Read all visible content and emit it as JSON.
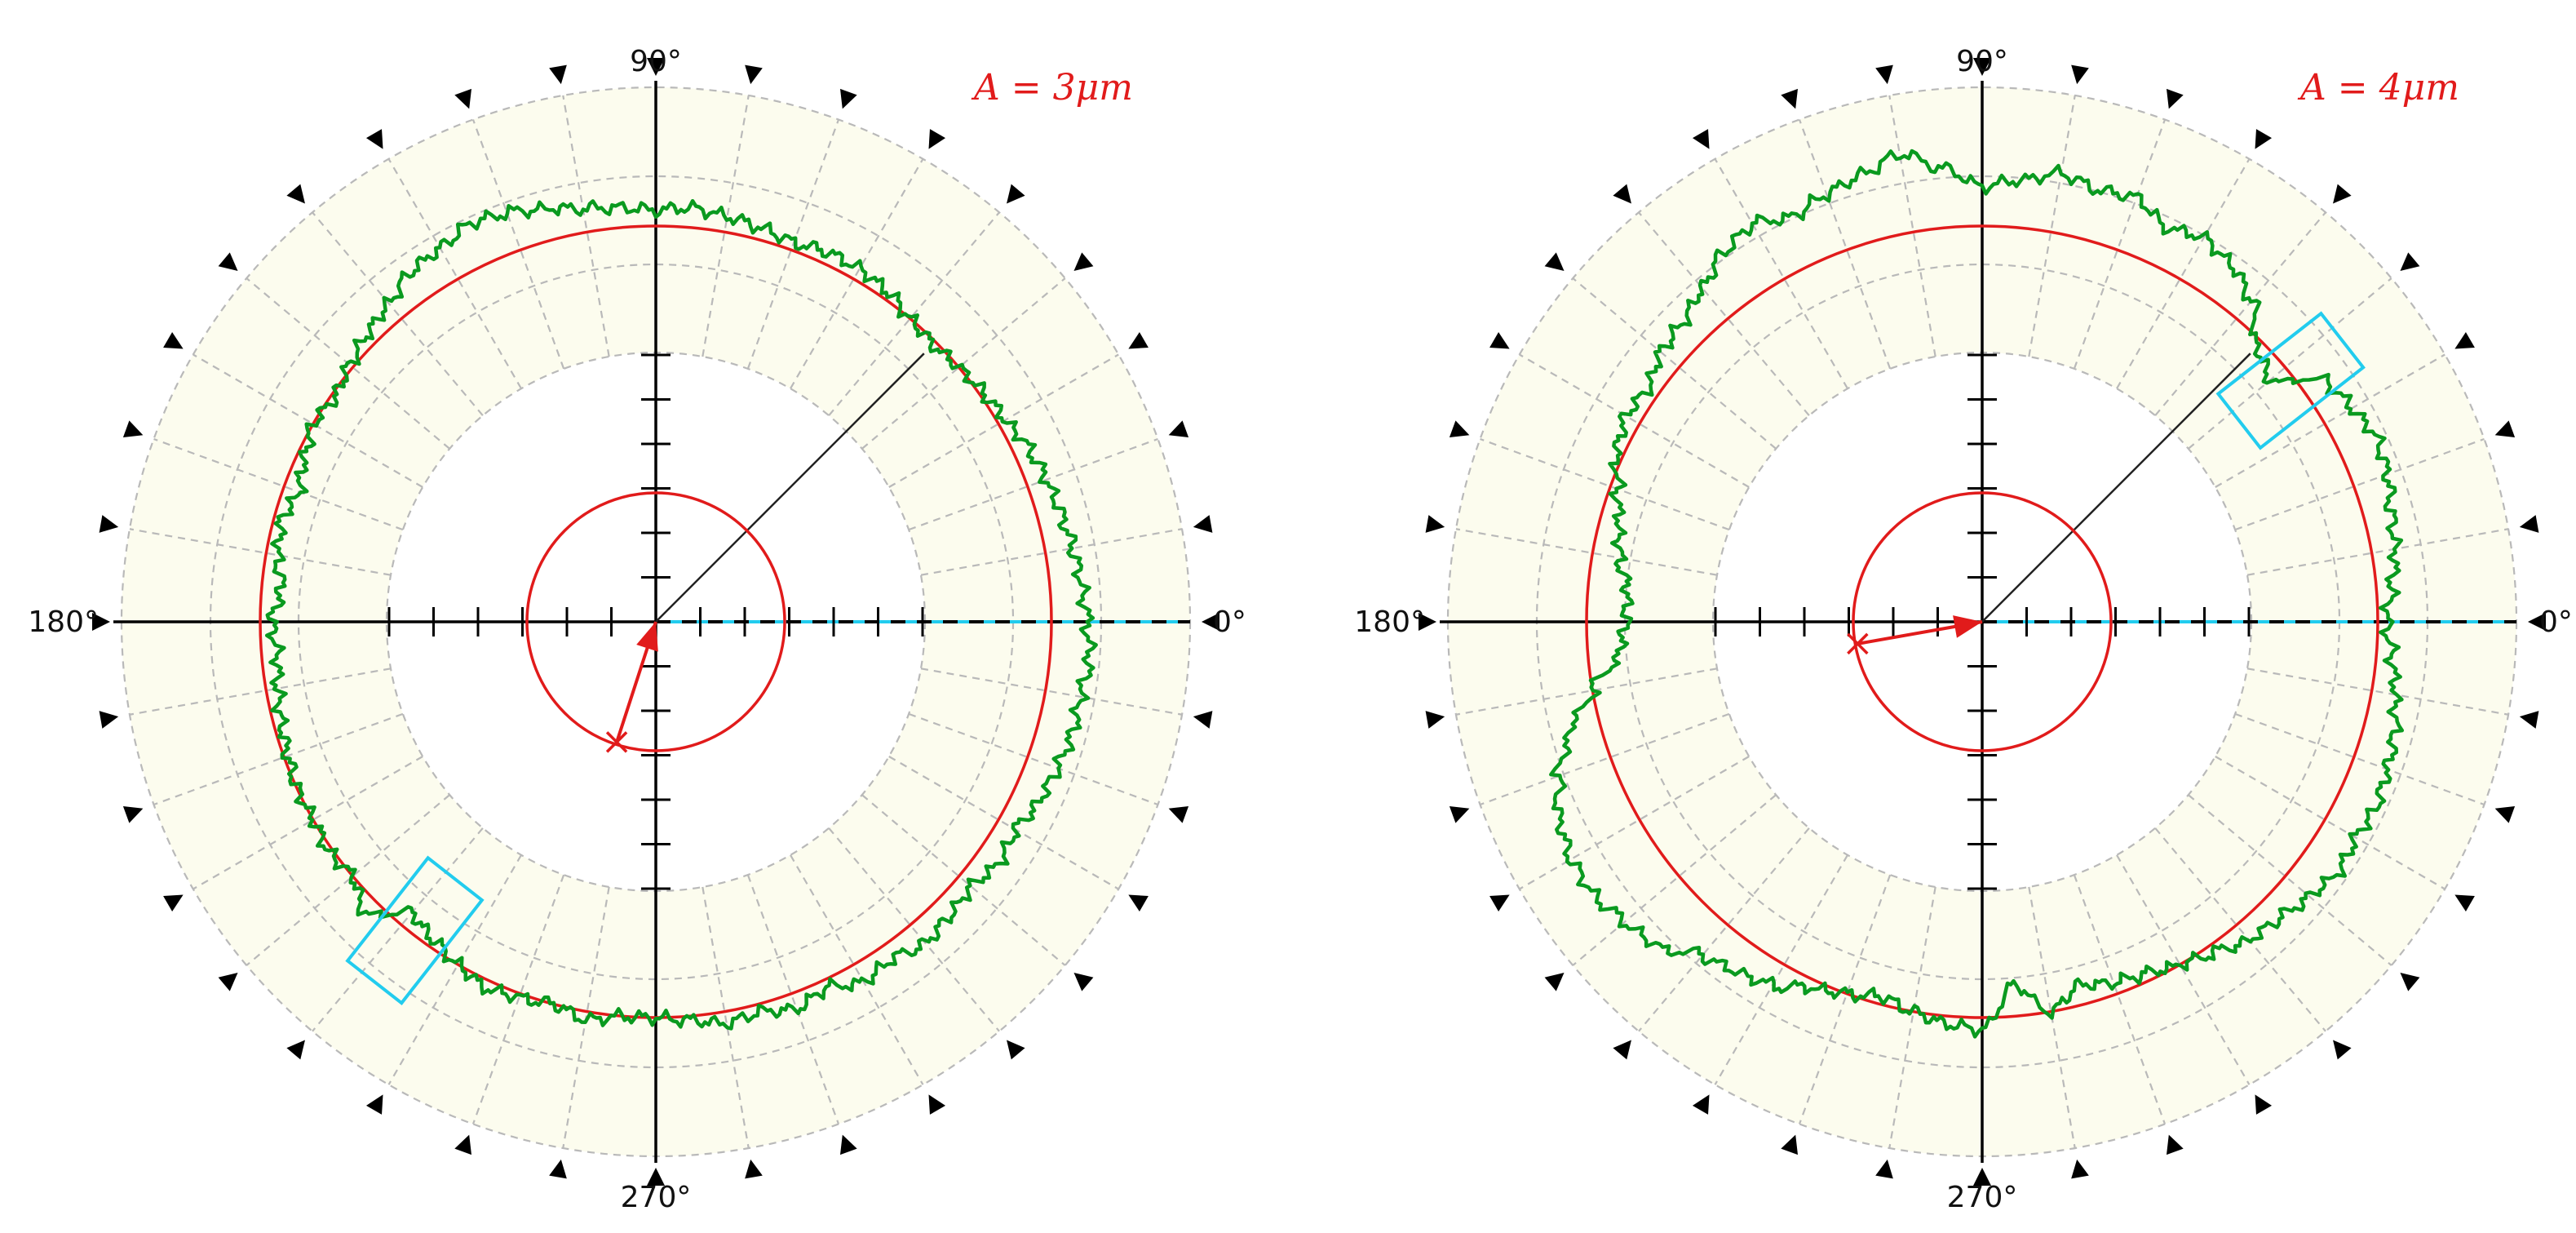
{
  "colors": {
    "background": "#ffffff",
    "band_fill": "#fcfcee",
    "grid": "#b9b9b9",
    "axis": "#000000",
    "profile": "#0a9a1f",
    "reference_circle": "#e11b1b",
    "selection_box": "#22ccee",
    "label_text": "#111111",
    "annotation": "#e11b1b"
  },
  "chart_data": [
    {
      "type": "polar",
      "panel": "left",
      "angle_labels": {
        "deg0": "0°",
        "deg90": "90°",
        "deg180": "180°",
        "deg270": "270°"
      },
      "annotation": "A = 3μm",
      "grid": true,
      "profile_series": {
        "angles_deg": [
          0,
          5,
          10,
          15,
          20,
          25,
          30,
          35,
          40,
          45,
          50,
          55,
          60,
          65,
          70,
          75,
          80,
          85,
          90,
          95,
          100,
          105,
          110,
          115,
          120,
          125,
          130,
          135,
          140,
          145,
          150,
          155,
          160,
          165,
          170,
          175,
          180,
          185,
          190,
          195,
          200,
          205,
          210,
          215,
          220,
          225,
          230,
          235,
          240,
          245,
          250,
          255,
          260,
          265,
          270,
          275,
          280,
          285,
          290,
          295,
          300,
          305,
          310,
          315,
          320,
          325,
          330,
          335,
          340,
          345,
          350,
          355
        ],
        "r_rel": [
          1.09,
          1.08,
          1.07,
          1.06,
          1.05,
          1.04,
          1.02,
          1.01,
          1.0,
          0.99,
          1.0,
          1.02,
          1.03,
          1.03,
          1.02,
          1.03,
          1.04,
          1.05,
          1.04,
          1.05,
          1.06,
          1.08,
          1.1,
          1.11,
          1.09,
          1.08,
          1.05,
          1.03,
          1.01,
          0.99,
          1.0,
          0.98,
          0.96,
          0.98,
          0.97,
          0.95,
          0.97,
          0.96,
          0.97,
          0.98,
          0.99,
          1.0,
          1.0,
          1.01,
          1.0,
          1.04,
          0.96,
          0.98,
          1.0,
          1.02,
          1.01,
          1.0,
          1.02,
          1.0,
          1.0,
          1.01,
          1.03,
          1.02,
          1.04,
          1.02,
          1.05,
          1.04,
          1.06,
          1.05,
          1.04,
          1.06,
          1.05,
          1.07,
          1.08,
          1.09,
          1.09,
          1.1
        ]
      },
      "inner_ref_angle_deg": 40,
      "outer_ref_angle_deg": 45,
      "mean_circle_r_rel": 1.0,
      "center_offset_direction_deg": 252,
      "selection_box_angle_deg": 232
    },
    {
      "type": "polar",
      "panel": "right",
      "angle_labels": {
        "deg0": "0°",
        "deg90": "90°",
        "deg180": "180°",
        "deg270": "270°"
      },
      "annotation": "A = 4μm",
      "grid": true,
      "profile_series": {
        "angles_deg": [
          0,
          5,
          10,
          15,
          20,
          25,
          30,
          35,
          40,
          45,
          50,
          55,
          60,
          65,
          70,
          75,
          80,
          85,
          90,
          95,
          100,
          105,
          110,
          115,
          120,
          125,
          130,
          135,
          140,
          145,
          150,
          155,
          160,
          165,
          170,
          175,
          180,
          185,
          190,
          195,
          200,
          205,
          210,
          215,
          220,
          225,
          230,
          235,
          240,
          245,
          250,
          255,
          260,
          265,
          270,
          275,
          280,
          285,
          290,
          295,
          300,
          305,
          310,
          315,
          320,
          325,
          330,
          335,
          340,
          345,
          350,
          355
        ],
        "r_rel": [
          1.02,
          1.04,
          1.06,
          1.07,
          1.09,
          1.1,
          1.08,
          1.06,
          0.95,
          0.98,
          1.06,
          1.1,
          1.12,
          1.1,
          1.14,
          1.13,
          1.15,
          1.12,
          1.1,
          1.15,
          1.2,
          1.17,
          1.15,
          1.13,
          1.16,
          1.14,
          1.1,
          1.07,
          1.06,
          1.03,
          1.04,
          1.02,
          0.98,
          0.95,
          0.93,
          0.9,
          0.9,
          0.92,
          1.0,
          1.08,
          1.14,
          1.18,
          1.2,
          1.2,
          1.18,
          1.16,
          1.1,
          1.08,
          1.06,
          1.02,
          1.0,
          0.98,
          1.0,
          1.02,
          1.03,
          0.92,
          1.0,
          0.95,
          0.97,
          0.98,
          1.0,
          1.02,
          1.05,
          1.06,
          1.08,
          1.1,
          1.09,
          1.1,
          1.09,
          1.08,
          1.06,
          1.04
        ]
      },
      "inner_ref_angle_deg": 40,
      "outer_ref_angle_deg": 45,
      "mean_circle_r_rel": 1.0,
      "center_offset_direction_deg": 190,
      "selection_box_angle_deg": 38
    }
  ]
}
